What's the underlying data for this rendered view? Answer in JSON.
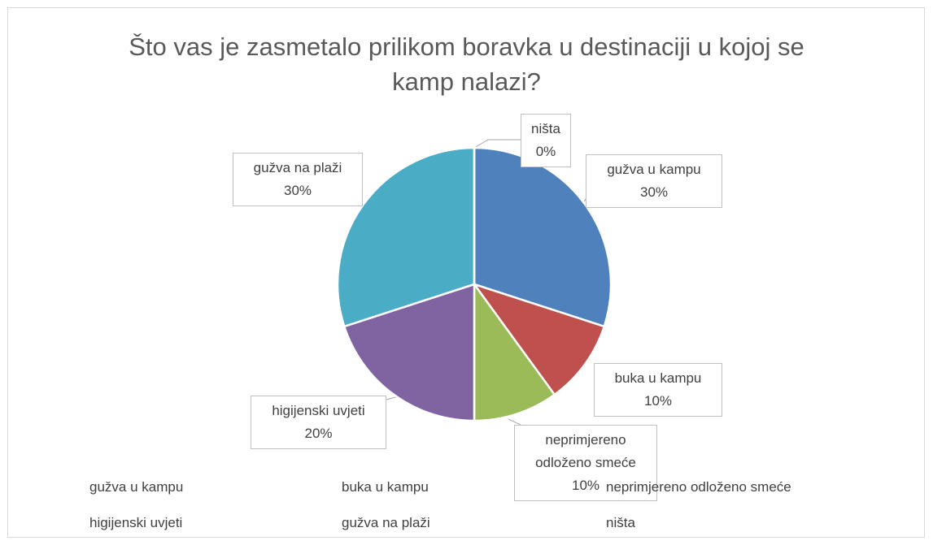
{
  "chart_data": {
    "type": "pie",
    "title": "Što vas je zasmetalo prilikom boravka u destinaciji u kojoj se kamp nalazi?",
    "categories": [
      "gužva u kampu",
      "buka u kampu",
      "neprimjereno odloženo smeće",
      "higijenski uvjeti",
      "gužva na plaži",
      "ništa"
    ],
    "values": [
      30,
      10,
      10,
      20,
      30,
      0
    ],
    "value_labels": [
      "30%",
      "10%",
      "10%",
      "20%",
      "30%",
      "0%"
    ],
    "colors": [
      "#4f81bd",
      "#c0504d",
      "#9bbb59",
      "#8064a2",
      "#4bacc6",
      "#f79646"
    ],
    "legend": "bottom"
  }
}
